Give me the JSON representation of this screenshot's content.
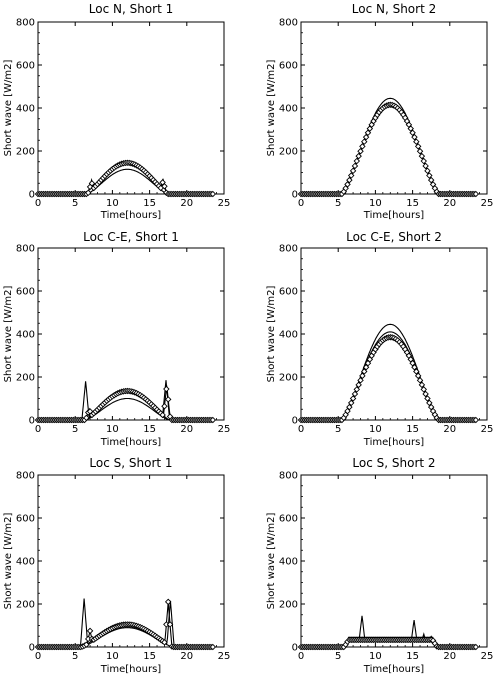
{
  "chart_data": [
    {
      "type": "line",
      "title": "Loc N, Short 1",
      "xlabel": "Time[hours]",
      "ylabel": "Short wave [W/m2]",
      "xlim": [
        0,
        25
      ],
      "ylim": [
        0,
        800
      ],
      "xticks": [
        0,
        5,
        10,
        15,
        20,
        25
      ],
      "yticks": [
        0,
        200,
        400,
        600,
        800
      ],
      "day": [
        6.5,
        17.5
      ],
      "series": [
        {
          "style": "line",
          "peak": 115,
          "shape": 1.4,
          "spikes": []
        },
        {
          "style": "line",
          "peak": 140,
          "shape": 1.4,
          "spikes": [
            {
              "x": 7.2,
              "y": 60
            },
            {
              "x": 16.8,
              "y": 65
            }
          ]
        },
        {
          "style": "line",
          "peak": 150,
          "shape": 1.3,
          "spikes": [
            {
              "x": 7.2,
              "y": 65
            },
            {
              "x": 16.8,
              "y": 70
            }
          ]
        },
        {
          "style": "diamonds",
          "peak": 145,
          "shape": 1.3,
          "spikes": [
            {
              "x": 7.2,
              "y": 55
            },
            {
              "x": 16.8,
              "y": 60
            }
          ]
        }
      ]
    },
    {
      "type": "line",
      "title": "Loc N, Short 2",
      "xlabel": "Time[hours]",
      "ylabel": "Short wave [W/m2]",
      "xlim": [
        0,
        25
      ],
      "ylim": [
        0,
        800
      ],
      "xticks": [
        0,
        5,
        10,
        15,
        20,
        25
      ],
      "yticks": [
        0,
        200,
        400,
        600,
        800
      ],
      "day": [
        5.5,
        18.5
      ],
      "series": [
        {
          "style": "line",
          "peak": 445,
          "shape": 1.4,
          "spikes": []
        },
        {
          "style": "line",
          "peak": 420,
          "shape": 1.3,
          "spikes": []
        },
        {
          "style": "diamonds",
          "peak": 415,
          "shape": 1.3,
          "spikes": []
        }
      ]
    },
    {
      "type": "line",
      "title": "Loc C-E, Short 1",
      "xlabel": "Time[hours]",
      "ylabel": "Short wave [W/m2]",
      "xlim": [
        0,
        25
      ],
      "ylim": [
        0,
        800
      ],
      "xticks": [
        0,
        5,
        10,
        15,
        20,
        25
      ],
      "yticks": [
        0,
        200,
        400,
        600,
        800
      ],
      "day": [
        6.3,
        17.7
      ],
      "series": [
        {
          "style": "line",
          "peak": 100,
          "shape": 1.4,
          "spikes": []
        },
        {
          "style": "line",
          "peak": 130,
          "shape": 1.3,
          "spikes": [
            {
              "x": 6.4,
              "y": 180
            },
            {
              "x": 17.2,
              "y": 185
            }
          ]
        },
        {
          "style": "line",
          "peak": 140,
          "shape": 1.3,
          "spikes": []
        },
        {
          "style": "diamonds",
          "peak": 135,
          "shape": 1.3,
          "spikes": [
            {
              "x": 6.9,
              "y": 50
            },
            {
              "x": 17.3,
              "y": 160
            }
          ]
        }
      ]
    },
    {
      "type": "line",
      "title": "Loc C-E, Short 2",
      "xlabel": "Time[hours]",
      "ylabel": "Short wave [W/m2]",
      "xlim": [
        0,
        25
      ],
      "ylim": [
        0,
        800
      ],
      "xticks": [
        0,
        5,
        10,
        15,
        20,
        25
      ],
      "yticks": [
        0,
        200,
        400,
        600,
        800
      ],
      "day": [
        5.5,
        18.5
      ],
      "series": [
        {
          "style": "line",
          "peak": 445,
          "shape": 1.4,
          "spikes": []
        },
        {
          "style": "line",
          "peak": 410,
          "shape": 1.3,
          "spikes": []
        },
        {
          "style": "diamonds",
          "peak": 385,
          "shape": 1.3,
          "spikes": []
        }
      ]
    },
    {
      "type": "line",
      "title": "Loc S, Short 1",
      "xlabel": "Time[hours]",
      "ylabel": "Short wave [W/m2]",
      "xlim": [
        0,
        25
      ],
      "ylim": [
        0,
        800
      ],
      "xticks": [
        0,
        5,
        10,
        15,
        20,
        25
      ],
      "yticks": [
        0,
        200,
        400,
        600,
        800
      ],
      "day": [
        5.8,
        18.2
      ],
      "series": [
        {
          "style": "line",
          "peak": 90,
          "shape": 1.4,
          "spikes": [
            {
              "x": 6.2,
              "y": 225
            }
          ]
        },
        {
          "style": "line",
          "peak": 110,
          "shape": 1.3,
          "spikes": [
            {
              "x": 17.8,
              "y": 215
            }
          ]
        },
        {
          "style": "diamonds",
          "peak": 105,
          "shape": 1.3,
          "spikes": [
            {
              "x": 7.0,
              "y": 75
            },
            {
              "x": 17.5,
              "y": 210
            }
          ]
        }
      ]
    },
    {
      "type": "line",
      "title": "Loc S, Short 2",
      "xlabel": "Time[hours]",
      "ylabel": "Short wave [W/m2]",
      "xlim": [
        0,
        25
      ],
      "ylim": [
        0,
        800
      ],
      "xticks": [
        0,
        5,
        10,
        15,
        20,
        25
      ],
      "yticks": [
        0,
        200,
        400,
        600,
        800
      ],
      "day": [
        5.8,
        18.3
      ],
      "series": [
        {
          "style": "flat",
          "level": 25,
          "spikes": [
            {
              "x": 8.2,
              "y": 145
            },
            {
              "x": 15.2,
              "y": 125
            }
          ]
        },
        {
          "style": "flat",
          "level": 35,
          "spikes": [
            {
              "x": 7.5,
              "y": 30
            },
            {
              "x": 16.5,
              "y": 60
            }
          ]
        },
        {
          "style": "flat",
          "level": 45,
          "spikes": [
            {
              "x": 17.5,
              "y": 50
            }
          ]
        },
        {
          "style": "diamonds-flat",
          "level": 33,
          "spikes": []
        }
      ]
    }
  ]
}
